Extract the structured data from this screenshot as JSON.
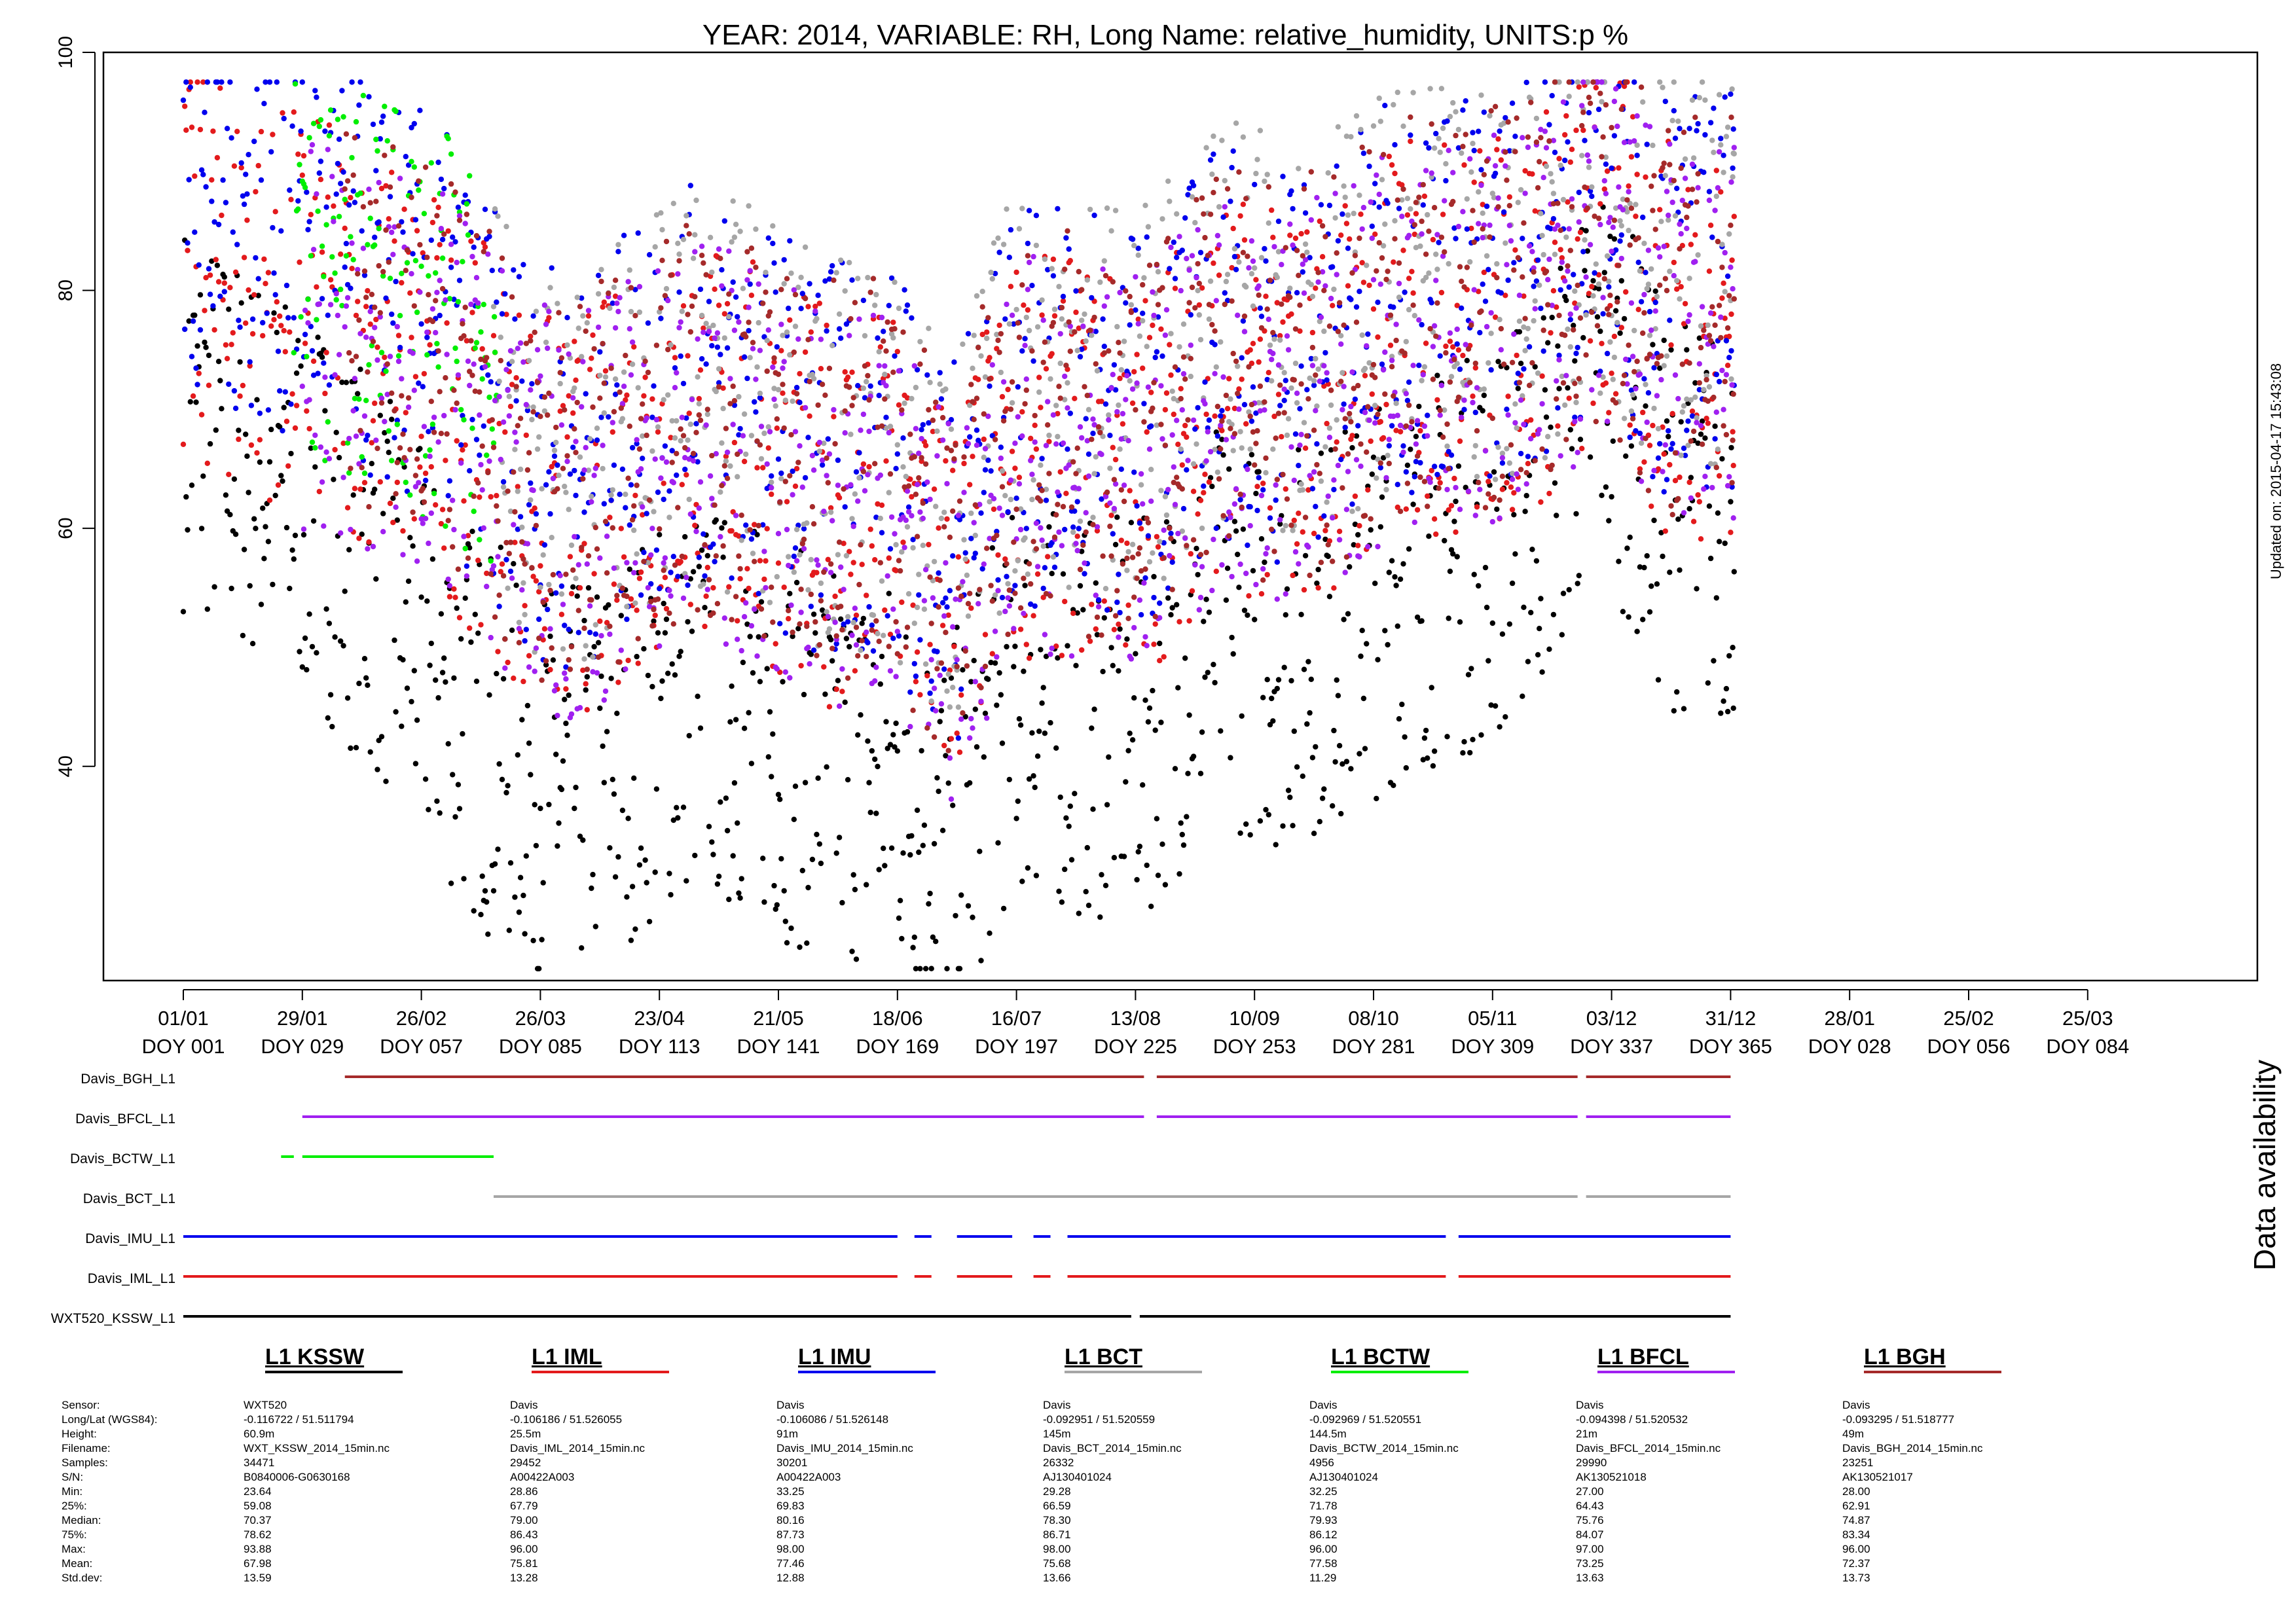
{
  "chart_data": {
    "type": "scatter",
    "title": "YEAR: 2014, VARIABLE: RH, Long Name: relative_humidity, UNITS:p %",
    "xlabel": "",
    "ylabel": "",
    "ylim": [
      22,
      100
    ],
    "y_ticks": [
      40,
      60,
      80,
      100
    ],
    "grid": false,
    "updated_text": "Updated on: 2015-04-17 15:43:08",
    "x_ticks": [
      {
        "date": "01/01",
        "doy": "DOY 001"
      },
      {
        "date": "29/01",
        "doy": "DOY 029"
      },
      {
        "date": "26/02",
        "doy": "DOY 057"
      },
      {
        "date": "26/03",
        "doy": "DOY 085"
      },
      {
        "date": "23/04",
        "doy": "DOY 113"
      },
      {
        "date": "21/05",
        "doy": "DOY 141"
      },
      {
        "date": "18/06",
        "doy": "DOY 169"
      },
      {
        "date": "16/07",
        "doy": "DOY 197"
      },
      {
        "date": "13/08",
        "doy": "DOY 225"
      },
      {
        "date": "10/09",
        "doy": "DOY 253"
      },
      {
        "date": "08/10",
        "doy": "DOY 281"
      },
      {
        "date": "05/11",
        "doy": "DOY 309"
      },
      {
        "date": "03/12",
        "doy": "DOY 337"
      },
      {
        "date": "31/12",
        "doy": "DOY 365"
      },
      {
        "date": "28/01",
        "doy": "DOY 028"
      },
      {
        "date": "25/02",
        "doy": "DOY 056"
      },
      {
        "date": "25/03",
        "doy": "DOY 084"
      }
    ],
    "series": [
      {
        "name": "L1 KSSW",
        "color": "#000000",
        "x": [
          "2014-01-01",
          "2014-01-15",
          "2014-02-01",
          "2014-02-15",
          "2014-03-01",
          "2014-03-15",
          "2014-04-01",
          "2014-04-15",
          "2014-05-01",
          "2014-05-15",
          "2014-06-01",
          "2014-06-15",
          "2014-07-01",
          "2014-07-15",
          "2014-08-01",
          "2014-08-15",
          "2014-09-01",
          "2014-09-15",
          "2014-10-01",
          "2014-10-15",
          "2014-11-01",
          "2014-11-15",
          "2014-12-01",
          "2014-12-15",
          "2014-12-31"
        ],
        "y": [
          70,
          66,
          62,
          56,
          48,
          42,
          38,
          42,
          46,
          44,
          40,
          40,
          34,
          46,
          44,
          44,
          52,
          50,
          52,
          56,
          58,
          62,
          74,
          62,
          60
        ]
      },
      {
        "name": "L1 IML",
        "color": "#e31a1c",
        "x": [
          "2014-01-01",
          "2014-01-15",
          "2014-02-01",
          "2014-02-15",
          "2014-03-01",
          "2014-03-15",
          "2014-04-01",
          "2014-04-15",
          "2014-05-01",
          "2014-05-15",
          "2014-06-01",
          "2014-06-15",
          "2014-07-01",
          "2014-07-15",
          "2014-08-01",
          "2014-08-15",
          "2014-09-01",
          "2014-09-15",
          "2014-10-01",
          "2014-10-15",
          "2014-11-01",
          "2014-11-15",
          "2014-12-01",
          "2014-12-15",
          "2014-12-31"
        ],
        "y": [
          82,
          80,
          78,
          75,
          72,
          66,
          60,
          64,
          68,
          66,
          62,
          62,
          54,
          66,
          66,
          64,
          72,
          70,
          72,
          76,
          76,
          78,
          84,
          76,
          76
        ]
      },
      {
        "name": "L1 IMU",
        "color": "#0000ee",
        "x": [
          "2014-01-01",
          "2014-01-15",
          "2014-02-01",
          "2014-02-15",
          "2014-03-01",
          "2014-03-15",
          "2014-04-01",
          "2014-04-15",
          "2014-05-01",
          "2014-05-15",
          "2014-06-01",
          "2014-06-15",
          "2014-07-01",
          "2014-07-15",
          "2014-08-01",
          "2014-08-15",
          "2014-09-01",
          "2014-09-15",
          "2014-10-01",
          "2014-10-15",
          "2014-11-01",
          "2014-11-15",
          "2014-12-01",
          "2014-12-15",
          "2014-12-31"
        ],
        "y": [
          88,
          86,
          84,
          80,
          78,
          70,
          64,
          68,
          72,
          70,
          66,
          66,
          58,
          70,
          70,
          68,
          76,
          74,
          76,
          80,
          80,
          82,
          88,
          80,
          80
        ]
      },
      {
        "name": "L1 BCT",
        "color": "#a6a6a6",
        "x": [
          "2014-03-15",
          "2014-04-01",
          "2014-04-15",
          "2014-05-01",
          "2014-05-15",
          "2014-06-01",
          "2014-06-15",
          "2014-07-01",
          "2014-07-15",
          "2014-08-01",
          "2014-08-15",
          "2014-09-01",
          "2014-09-15",
          "2014-10-01",
          "2014-10-15",
          "2014-11-01",
          "2014-11-15",
          "2014-12-01",
          "2014-12-15",
          "2014-12-31"
        ],
        "y": [
          70,
          64,
          68,
          72,
          70,
          66,
          66,
          58,
          72,
          72,
          70,
          78,
          76,
          78,
          80,
          80,
          82,
          88,
          82,
          82
        ]
      },
      {
        "name": "L1 BCTW",
        "color": "#00ee00",
        "x": [
          "2014-01-27",
          "2014-02-05",
          "2014-02-15",
          "2014-02-25",
          "2014-03-05",
          "2014-03-15"
        ],
        "y": [
          84,
          80,
          80,
          78,
          76,
          72
        ]
      },
      {
        "name": "L1 BFCL",
        "color": "#a020f0",
        "x": [
          "2014-01-29",
          "2014-02-15",
          "2014-03-01",
          "2014-03-15",
          "2014-04-01",
          "2014-04-15",
          "2014-05-01",
          "2014-05-15",
          "2014-06-01",
          "2014-06-15",
          "2014-07-01",
          "2014-07-15",
          "2014-08-01",
          "2014-08-15",
          "2014-09-01",
          "2014-09-15",
          "2014-10-01",
          "2014-10-15",
          "2014-11-01",
          "2014-11-15",
          "2014-12-01",
          "2014-12-15",
          "2014-12-31"
        ],
        "y": [
          76,
          74,
          72,
          66,
          60,
          64,
          68,
          66,
          62,
          62,
          54,
          66,
          66,
          64,
          72,
          70,
          72,
          76,
          76,
          78,
          84,
          76,
          76
        ]
      },
      {
        "name": "L1 BGH",
        "color": "#a52a2a",
        "x": [
          "2014-02-08",
          "2014-02-15",
          "2014-03-01",
          "2014-03-15",
          "2014-04-01",
          "2014-04-15",
          "2014-05-01",
          "2014-05-15",
          "2014-06-01",
          "2014-06-15",
          "2014-07-01",
          "2014-07-15",
          "2014-08-01",
          "2014-08-15",
          "2014-09-01",
          "2014-09-15",
          "2014-10-01",
          "2014-10-15",
          "2014-11-01",
          "2014-11-15",
          "2014-12-01",
          "2014-12-15",
          "2014-12-31"
        ],
        "y": [
          78,
          76,
          74,
          68,
          62,
          66,
          70,
          68,
          64,
          64,
          56,
          68,
          68,
          66,
          74,
          72,
          74,
          78,
          78,
          80,
          86,
          78,
          78
        ]
      }
    ]
  },
  "availability": {
    "title": "Data availability",
    "rows": [
      {
        "label": "Davis_BGH_L1",
        "color": "#a52a2a",
        "segments": [
          [
            "2014-02-08",
            "2014-08-15"
          ],
          [
            "2014-08-18",
            "2014-11-25"
          ],
          [
            "2014-11-27",
            "2014-12-31"
          ]
        ]
      },
      {
        "label": "Davis_BFCL_L1",
        "color": "#a020f0",
        "segments": [
          [
            "2014-01-29",
            "2014-08-15"
          ],
          [
            "2014-08-18",
            "2014-11-25"
          ],
          [
            "2014-11-27",
            "2014-12-31"
          ]
        ]
      },
      {
        "label": "Davis_BCTW_L1",
        "color": "#00ee00",
        "segments": [
          [
            "2014-01-24",
            "2014-01-27"
          ],
          [
            "2014-01-29",
            "2014-03-15"
          ]
        ]
      },
      {
        "label": "Davis_BCT_L1",
        "color": "#a6a6a6",
        "segments": [
          [
            "2014-03-15",
            "2014-11-25"
          ],
          [
            "2014-11-27",
            "2014-12-31"
          ]
        ]
      },
      {
        "label": "Davis_IMU_L1",
        "color": "#0000ee",
        "segments": [
          [
            "2014-01-01",
            "2014-06-18"
          ],
          [
            "2014-06-22",
            "2014-06-26"
          ],
          [
            "2014-07-02",
            "2014-07-15"
          ],
          [
            "2014-07-20",
            "2014-07-24"
          ],
          [
            "2014-07-28",
            "2014-10-25"
          ],
          [
            "2014-10-28",
            "2014-12-31"
          ]
        ]
      },
      {
        "label": "Davis_IML_L1",
        "color": "#e31a1c",
        "segments": [
          [
            "2014-01-01",
            "2014-06-18"
          ],
          [
            "2014-06-22",
            "2014-06-26"
          ],
          [
            "2014-07-02",
            "2014-07-15"
          ],
          [
            "2014-07-20",
            "2014-07-24"
          ],
          [
            "2014-07-28",
            "2014-10-25"
          ],
          [
            "2014-10-28",
            "2014-12-31"
          ]
        ]
      },
      {
        "label": "WXT520_KSSW_L1",
        "color": "#000000",
        "segments": [
          [
            "2014-01-01",
            "2014-08-12"
          ],
          [
            "2014-08-14",
            "2014-12-31"
          ]
        ]
      }
    ]
  },
  "stats": {
    "labels": [
      "Sensor:",
      "Long/Lat (WGS84):",
      "Height:",
      "Filename:",
      "Samples:",
      "S/N:",
      "Min:",
      "25%:",
      "Median:",
      "75%:",
      "Max:",
      "Mean:",
      "Std.dev:"
    ],
    "columns": [
      {
        "name": "L1 KSSW",
        "color": "#000000",
        "values": [
          "WXT520",
          "-0.116722 / 51.511794",
          "60.9m",
          "WXT_KSSW_2014_15min.nc",
          "34471",
          "B0840006-G0630168",
          "23.64",
          "59.08",
          "70.37",
          "78.62",
          "93.88",
          "67.98",
          "13.59"
        ]
      },
      {
        "name": "L1 IML",
        "color": "#e31a1c",
        "values": [
          "Davis",
          "-0.106186 / 51.526055",
          "25.5m",
          "Davis_IML_2014_15min.nc",
          "29452",
          "A00422A003",
          "28.86",
          "67.79",
          "79.00",
          "86.43",
          "96.00",
          "75.81",
          "13.28"
        ]
      },
      {
        "name": "L1 IMU",
        "color": "#0000ee",
        "values": [
          "Davis",
          "-0.106086 / 51.526148",
          "91m",
          "Davis_IMU_2014_15min.nc",
          "30201",
          "A00422A003",
          "33.25",
          "69.83",
          "80.16",
          "87.73",
          "98.00",
          "77.46",
          "12.88"
        ]
      },
      {
        "name": "L1 BCT",
        "color": "#a6a6a6",
        "values": [
          "Davis",
          "-0.092951 / 51.520559",
          "145m",
          "Davis_BCT_2014_15min.nc",
          "26332",
          "AJ130401024",
          "29.28",
          "66.59",
          "78.30",
          "86.71",
          "98.00",
          "75.68",
          "13.66"
        ]
      },
      {
        "name": "L1 BCTW",
        "color": "#00ee00",
        "values": [
          "Davis",
          "-0.092969 / 51.520551",
          "144.5m",
          "Davis_BCTW_2014_15min.nc",
          "4956",
          "AJ130401024",
          "32.25",
          "71.78",
          "79.93",
          "86.12",
          "96.00",
          "77.58",
          "11.29"
        ]
      },
      {
        "name": "L1 BFCL",
        "color": "#a020f0",
        "values": [
          "Davis",
          "-0.094398 / 51.520532",
          "21m",
          "Davis_BFCL_2014_15min.nc",
          "29990",
          "AK130521018",
          "27.00",
          "64.43",
          "75.76",
          "84.07",
          "97.00",
          "73.25",
          "13.63"
        ]
      },
      {
        "name": "L1 BGH",
        "color": "#a52a2a",
        "values": [
          "Davis",
          "-0.093295 / 51.518777",
          "49m",
          "Davis_BGH_2014_15min.nc",
          "23251",
          "AK130521017",
          "28.00",
          "62.91",
          "74.87",
          "83.34",
          "96.00",
          "72.37",
          "13.73"
        ]
      }
    ]
  }
}
